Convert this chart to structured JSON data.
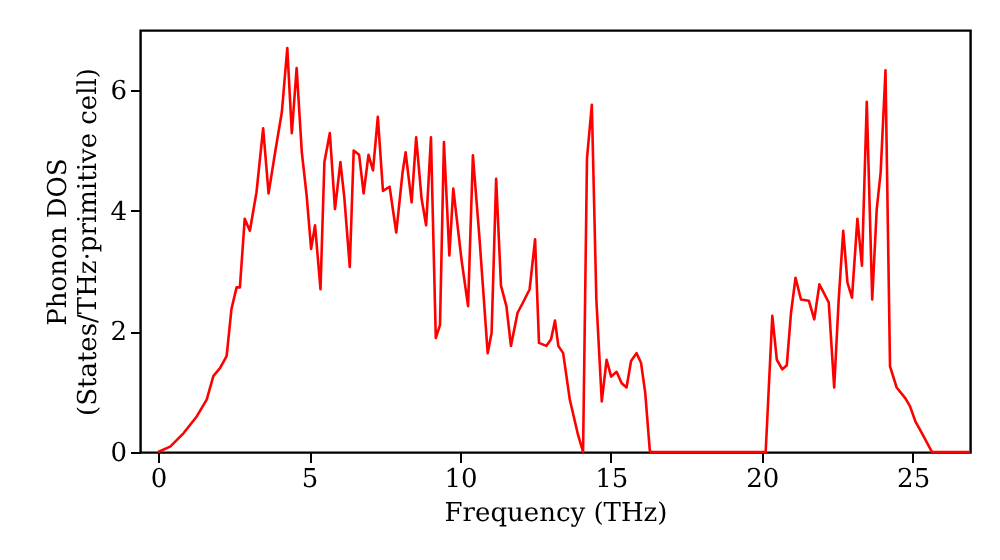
{
  "chart_data": {
    "type": "line",
    "xlabel": "Frequency (THz)",
    "ylabel": "Phonon DOS\n(States/THz·primitive cell)",
    "xlim": [
      -0.6,
      26.9
    ],
    "ylim": [
      0,
      7
    ],
    "xticks": [
      0,
      5,
      10,
      15,
      20,
      25
    ],
    "yticks": [
      0,
      2,
      4,
      6
    ],
    "grid": false,
    "marker": "none",
    "line_style": "solid",
    "x": [
      0,
      0.4,
      0.84,
      1.28,
      1.61,
      1.83,
      2.05,
      2.27,
      2.43,
      2.6,
      2.71,
      2.87,
      3.04,
      3.26,
      3.48,
      3.66,
      3.88,
      4.1,
      4.28,
      4.43,
      4.59,
      4.76,
      4.92,
      5.07,
      5.2,
      5.38,
      5.51,
      5.69,
      5.86,
      6.04,
      6.17,
      6.35,
      6.48,
      6.66,
      6.81,
      6.97,
      7.12,
      7.28,
      7.45,
      7.67,
      7.89,
      8.1,
      8.2,
      8.4,
      8.55,
      8.73,
      8.88,
      9.04,
      9.2,
      9.34,
      9.47,
      9.65,
      9.78,
      10.05,
      10.27,
      10.43,
      10.65,
      10.92,
      11.05,
      11.2,
      11.36,
      11.54,
      11.69,
      11.91,
      12.09,
      12.31,
      12.49,
      12.62,
      12.86,
      13.02,
      13.15,
      13.26,
      13.42,
      13.64,
      13.9,
      14.08,
      14.21,
      14.37,
      14.52,
      14.7,
      14.86,
      15.01,
      15.19,
      15.36,
      15.52,
      15.67,
      15.85,
      16.0,
      16.14,
      16.29,
      16.33,
      20.13,
      20.35,
      20.5,
      20.68,
      20.83,
      20.97,
      21.12,
      21.3,
      21.56,
      21.74,
      21.91,
      22.22,
      22.4,
      22.55,
      22.7,
      22.84,
      22.99,
      23.17,
      23.32,
      23.48,
      23.66,
      23.81,
      23.94,
      24.1,
      24.25,
      24.47,
      24.76,
      24.91,
      25.09,
      25.31,
      25.64,
      26.9
    ],
    "series": [
      {
        "color": "#ff0000",
        "values": [
          0,
          0.09,
          0.31,
          0.59,
          0.87,
          1.26,
          1.39,
          1.59,
          2.37,
          2.73,
          2.73,
          3.87,
          3.67,
          4.31,
          5.37,
          4.29,
          4.98,
          5.64,
          6.7,
          5.29,
          6.37,
          4.98,
          4.26,
          3.37,
          3.76,
          2.7,
          4.81,
          5.29,
          4.03,
          4.81,
          4.22,
          3.07,
          5.0,
          4.93,
          4.29,
          4.93,
          4.67,
          5.56,
          4.33,
          4.4,
          3.64,
          4.64,
          4.97,
          4.14,
          5.22,
          4.2,
          3.76,
          5.22,
          1.89,
          2.11,
          5.14,
          3.26,
          4.37,
          3.2,
          2.42,
          4.92,
          3.53,
          1.64,
          1.98,
          4.53,
          2.76,
          2.42,
          1.76,
          2.31,
          2.48,
          2.7,
          3.53,
          1.81,
          1.76,
          1.87,
          2.18,
          1.76,
          1.64,
          0.87,
          0.31,
          0,
          4.87,
          5.76,
          2.53,
          0.84,
          1.53,
          1.25,
          1.33,
          1.14,
          1.07,
          1.51,
          1.64,
          1.48,
          0.98,
          0.03,
          0,
          0,
          2.26,
          1.53,
          1.37,
          1.44,
          2.31,
          2.89,
          2.53,
          2.51,
          2.2,
          2.78,
          2.48,
          1.07,
          2.53,
          3.67,
          2.81,
          2.56,
          3.87,
          3.09,
          5.81,
          2.53,
          4.03,
          4.64,
          6.33,
          1.42,
          1.07,
          0.89,
          0.76,
          0.51,
          0.31,
          0,
          0
        ]
      }
    ]
  }
}
